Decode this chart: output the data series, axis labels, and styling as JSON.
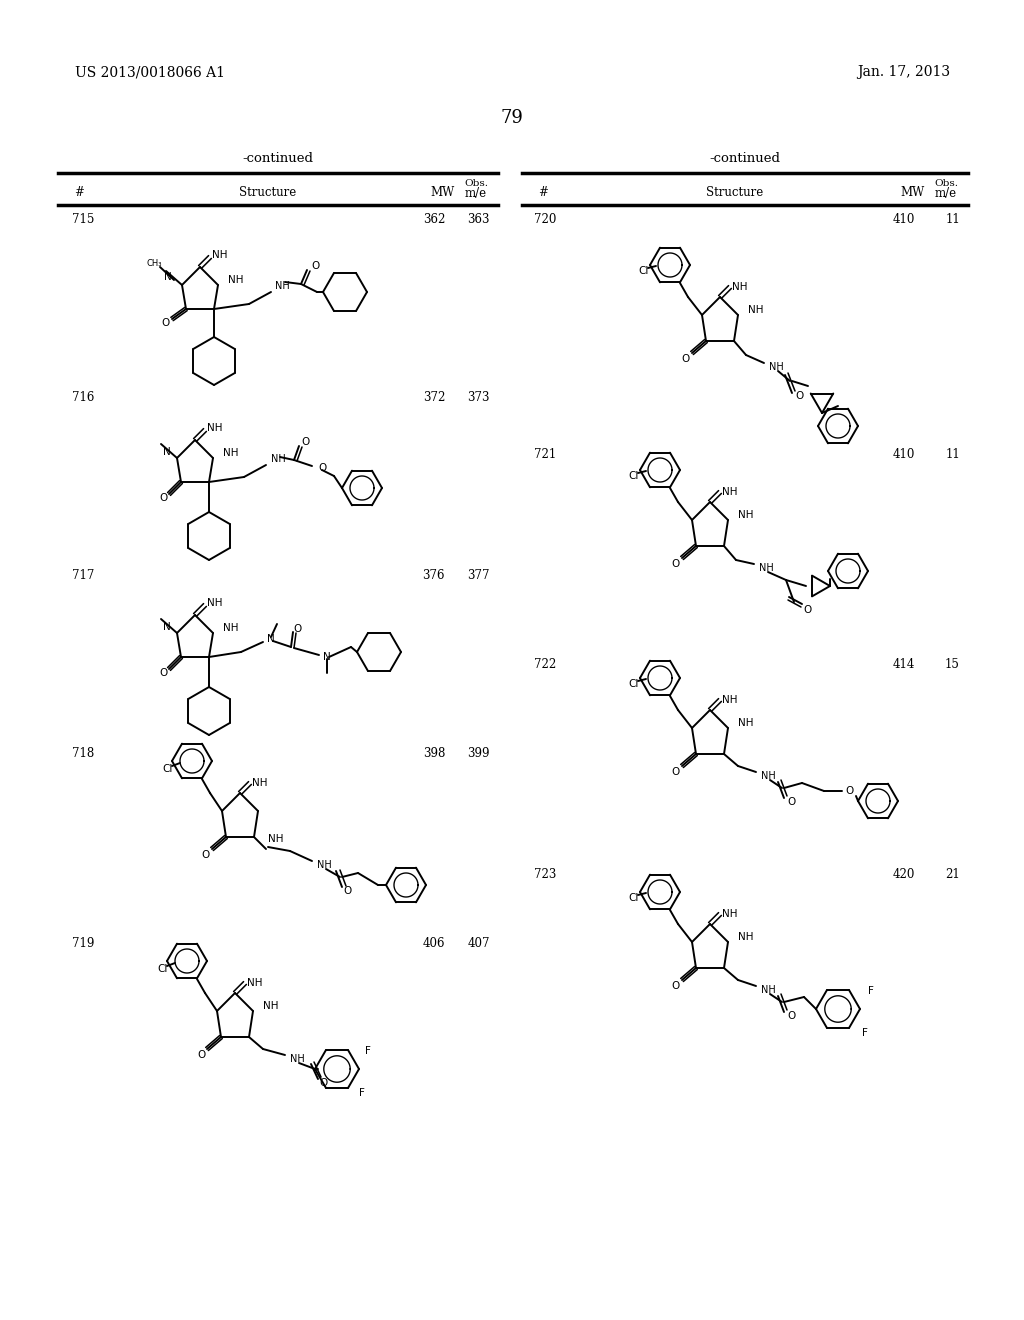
{
  "page_header_left": "US 2013/0018066 A1",
  "page_header_right": "Jan. 17, 2013",
  "page_number": "79",
  "background_color": "#ffffff",
  "left_entries": [
    {
      "num": "715",
      "mw": "362",
      "obs": "363"
    },
    {
      "num": "716",
      "mw": "372",
      "obs": "373"
    },
    {
      "num": "717",
      "mw": "376",
      "obs": "377"
    },
    {
      "num": "718",
      "mw": "398",
      "obs": "399"
    },
    {
      "num": "719",
      "mw": "406",
      "obs": "407"
    }
  ],
  "right_entries": [
    {
      "num": "720",
      "mw": "410",
      "obs": "11"
    },
    {
      "num": "721",
      "mw": "410",
      "obs": "11"
    },
    {
      "num": "722",
      "mw": "414",
      "obs": "15"
    },
    {
      "num": "723",
      "mw": "420",
      "obs": "21"
    }
  ]
}
